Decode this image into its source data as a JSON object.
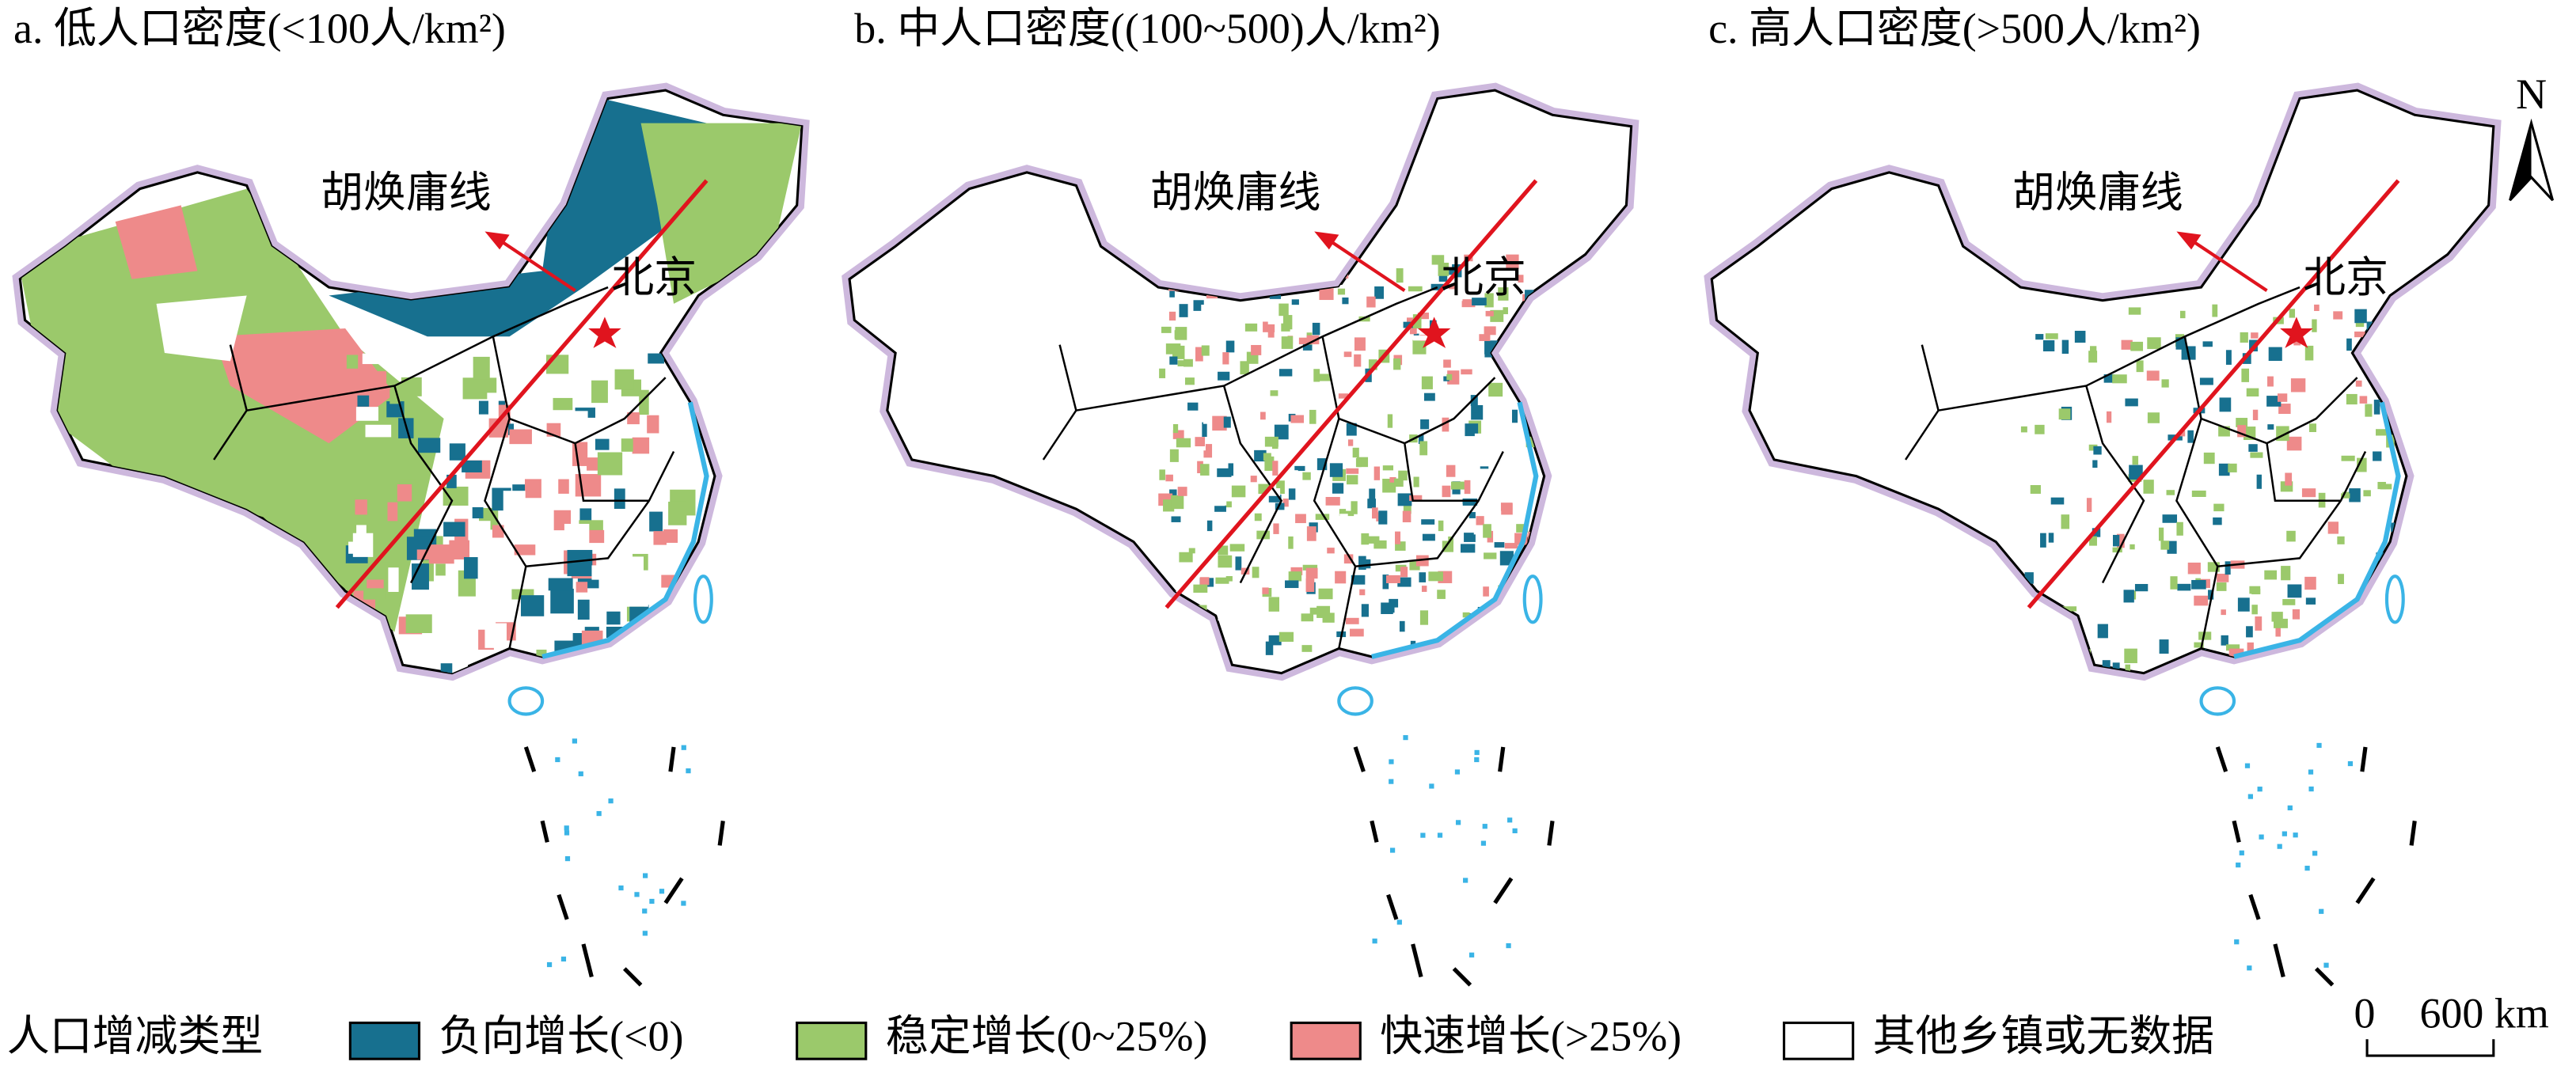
{
  "panels": [
    {
      "title": "a. 低人口密度(<100人/km²)",
      "line_label": "胡焕庸线",
      "city_label": "北京"
    },
    {
      "title": "b. 中人口密度((100~500)人/km²)",
      "line_label": "胡焕庸线",
      "city_label": "北京"
    },
    {
      "title": "c. 高人口密度(>500人/km²)",
      "line_label": "胡焕庸线",
      "city_label": "北京"
    }
  ],
  "north_label": "N",
  "legend": {
    "title": "人口增减类型",
    "items": [
      {
        "label": "负向增长(<0)",
        "color": "#17708f"
      },
      {
        "label": "稳定增长(0~25%)",
        "color": "#9bc96b"
      },
      {
        "label": "快速增长(>25%)",
        "color": "#ee8a8a"
      },
      {
        "label": "其他乡镇或无数据",
        "color": "#ffffff"
      }
    ]
  },
  "scale_bar": {
    "start": "0",
    "end": "600 km"
  }
}
